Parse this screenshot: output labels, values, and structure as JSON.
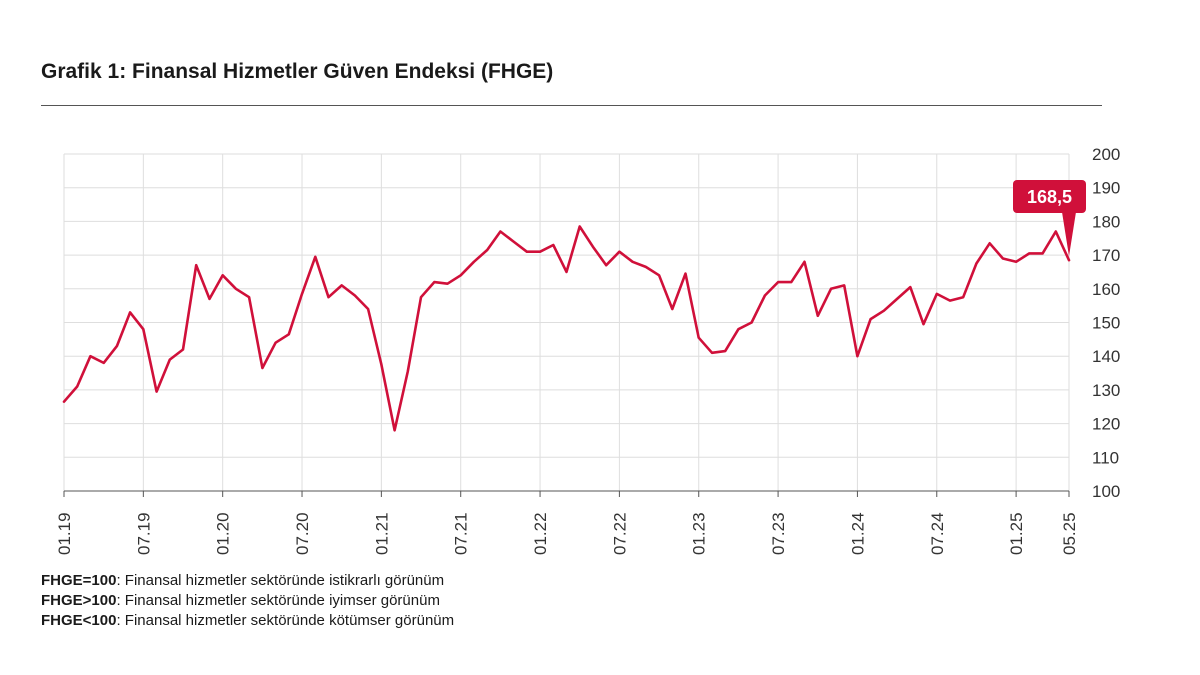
{
  "title": "Grafik 1: Finansal Hizmetler Güven Endeksi (FHGE)",
  "chart_data": {
    "type": "line",
    "title": "Grafik 1: Finansal Hizmetler Güven Endeksi (FHGE)",
    "xlabel": "",
    "ylabel": "",
    "ylim": [
      100,
      200
    ],
    "yticks": [
      "100",
      "110",
      "120",
      "130",
      "140",
      "150",
      "160",
      "170",
      "180",
      "190",
      "200"
    ],
    "xticks": [
      "01.19",
      "07.19",
      "01.20",
      "07.20",
      "01.21",
      "07.21",
      "01.22",
      "07.22",
      "01.23",
      "07.23",
      "01.24",
      "07.24",
      "01.25",
      "05.25"
    ],
    "xtick_index": [
      0,
      6,
      12,
      18,
      24,
      30,
      36,
      42,
      48,
      54,
      60,
      66,
      72,
      76
    ],
    "grid": true,
    "line_color": "#d0103a",
    "series": [
      {
        "name": "FHGE",
        "values": [
          126.5,
          131,
          140,
          138,
          143,
          153,
          148,
          129.5,
          139,
          142,
          167,
          157,
          164,
          160,
          157.5,
          136.5,
          144,
          146.5,
          158.5,
          169.5,
          157.5,
          161,
          158,
          154,
          137.5,
          118,
          135.5,
          157.5,
          162,
          161.5,
          164,
          168,
          171.5,
          177,
          174,
          171,
          171,
          173,
          165,
          178.5,
          172.5,
          167,
          171,
          168,
          166.5,
          164,
          154,
          164.5,
          145.5,
          141,
          141.5,
          148,
          150,
          158,
          162,
          162,
          168,
          152,
          160,
          161,
          140,
          151,
          153.5,
          157,
          160.5,
          149.5,
          158.5,
          156.5,
          157.5,
          167.5,
          173.5,
          169,
          168,
          170.5,
          170.5,
          177,
          168.5
        ]
      }
    ],
    "callout": {
      "label": "168,5",
      "value": 168.5,
      "color": "#d0103a"
    }
  },
  "notes": [
    {
      "key": "FHGE=100",
      "text": ": Finansal hizmetler sektöründe istikrarlı görünüm"
    },
    {
      "key": "FHGE>100",
      "text": ": Finansal hizmetler sektöründe iyimser görünüm"
    },
    {
      "key": "FHGE<100",
      "text": ": Finansal hizmetler sektöründe kötümser görünüm"
    }
  ]
}
